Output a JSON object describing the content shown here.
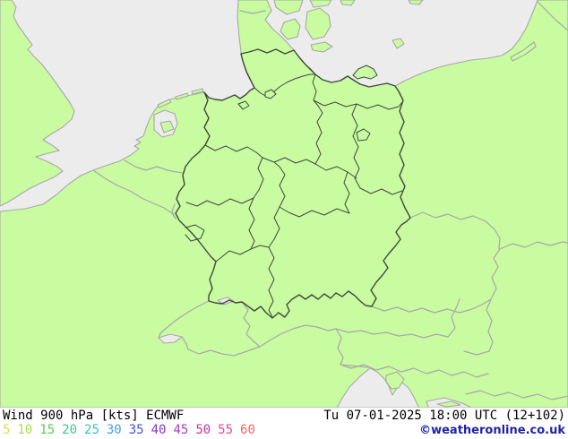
{
  "legend": {
    "title": "Wind 900 hPa [kts] ECMWF",
    "datetime": "Tu 07-01-2025 18:00 UTC (12+102)",
    "copyright": "©weatheronline.co.uk",
    "copyright_color": "#2222aa",
    "scale_unit": "kts",
    "scale_values": [
      {
        "label": "5",
        "color": "#d8df52"
      },
      {
        "label": "10",
        "color": "#a9dc4a"
      },
      {
        "label": "15",
        "color": "#4fd24f"
      },
      {
        "label": "20",
        "color": "#33cc8c"
      },
      {
        "label": "25",
        "color": "#2ec4c4"
      },
      {
        "label": "30",
        "color": "#3f9fef"
      },
      {
        "label": "35",
        "color": "#3f51dc"
      },
      {
        "label": "40",
        "color": "#8238d8"
      },
      {
        "label": "45",
        "color": "#a83ccc"
      },
      {
        "label": "50",
        "color": "#d42fa0"
      },
      {
        "label": "55",
        "color": "#ee4499"
      },
      {
        "label": "60",
        "color": "#f9655c"
      }
    ]
  },
  "map": {
    "region": "Central Europe / Germany with federal state borders",
    "colors": {
      "sea": "#ececec",
      "land": "#c9fba1",
      "coastline": "#a8a8a8",
      "germany_border": "#3f4a3f"
    }
  }
}
